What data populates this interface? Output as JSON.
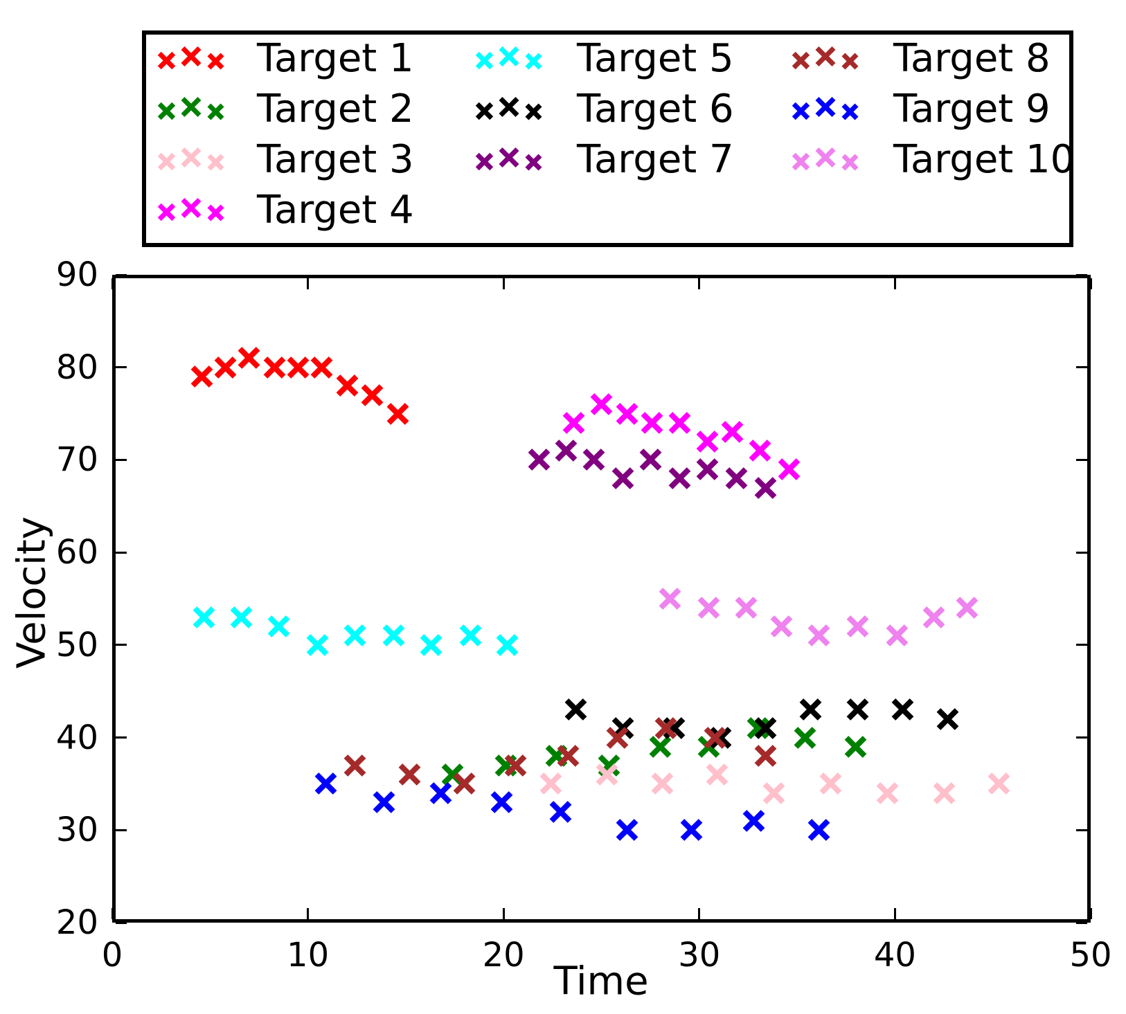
{
  "chart_data": {
    "type": "scatter",
    "marker": "x",
    "title": "",
    "xlabel": "Time",
    "ylabel": "Velocity",
    "xlim": [
      0,
      50
    ],
    "ylim": [
      20,
      90
    ],
    "xticks": [
      0,
      10,
      20,
      30,
      40,
      50
    ],
    "yticks": [
      20,
      30,
      40,
      50,
      60,
      70,
      80,
      90
    ],
    "grid": false,
    "legend_position": "top, 3 columns, column-major",
    "series": [
      {
        "name": "Target 1",
        "color": "#ff0000",
        "x": [
          4.6,
          5.8,
          7.0,
          8.3,
          9.5,
          10.7,
          12.0,
          13.3,
          14.6
        ],
        "y": [
          79,
          80,
          81,
          80,
          80,
          80,
          78,
          77,
          75
        ]
      },
      {
        "name": "Target 2",
        "color": "#008000",
        "x": [
          17.4,
          20.1,
          22.7,
          25.4,
          28.0,
          30.5,
          33.0,
          35.4,
          38.0
        ],
        "y": [
          36,
          37,
          38,
          37,
          39,
          39,
          41,
          40,
          39
        ]
      },
      {
        "name": "Target 3",
        "color": "#ffc0cb",
        "x": [
          22.4,
          25.3,
          28.1,
          30.9,
          33.8,
          36.7,
          39.6,
          42.5,
          45.3
        ],
        "y": [
          35,
          36,
          35,
          36,
          34,
          35,
          34,
          34,
          35
        ]
      },
      {
        "name": "Target 4",
        "color": "#ff00ff",
        "x": [
          23.6,
          25.0,
          26.3,
          27.6,
          29.0,
          30.4,
          31.7,
          33.1,
          34.6
        ],
        "y": [
          74,
          76,
          75,
          74,
          74,
          72,
          73,
          71,
          69
        ]
      },
      {
        "name": "Target 5",
        "color": "#00ffff",
        "x": [
          4.7,
          6.6,
          8.5,
          10.5,
          12.4,
          14.4,
          16.3,
          18.3,
          20.2
        ],
        "y": [
          53,
          53,
          52,
          50,
          51,
          51,
          50,
          51,
          50
        ]
      },
      {
        "name": "Target 6",
        "color": "#000000",
        "x": [
          23.7,
          26.1,
          28.7,
          31.1,
          33.4,
          35.7,
          38.1,
          40.4,
          42.7
        ],
        "y": [
          43,
          41,
          41,
          40,
          41,
          43,
          43,
          43,
          42
        ]
      },
      {
        "name": "Target 7",
        "color": "#800080",
        "x": [
          21.8,
          23.2,
          24.6,
          26.1,
          27.5,
          29.0,
          30.4,
          31.9,
          33.4
        ],
        "y": [
          70,
          71,
          70,
          68,
          70,
          68,
          69,
          68,
          67
        ]
      },
      {
        "name": "Target 8",
        "color": "#a52a2a",
        "x": [
          12.4,
          15.2,
          18.0,
          20.6,
          23.3,
          25.8,
          28.3,
          30.8,
          33.4
        ],
        "y": [
          37,
          36,
          35,
          37,
          38,
          40,
          41,
          40,
          38
        ]
      },
      {
        "name": "Target 9",
        "color": "#0000ff",
        "x": [
          10.9,
          13.9,
          16.8,
          19.9,
          22.9,
          26.3,
          29.6,
          32.8,
          36.1
        ],
        "y": [
          35,
          33,
          34,
          33,
          32,
          30,
          30,
          31,
          30
        ]
      },
      {
        "name": "Target 10",
        "color": "#ee82ee",
        "x": [
          28.5,
          30.5,
          32.4,
          34.2,
          36.1,
          38.1,
          40.1,
          42.0,
          43.7
        ],
        "y": [
          55,
          54,
          54,
          52,
          51,
          52,
          51,
          53,
          54
        ]
      }
    ]
  }
}
